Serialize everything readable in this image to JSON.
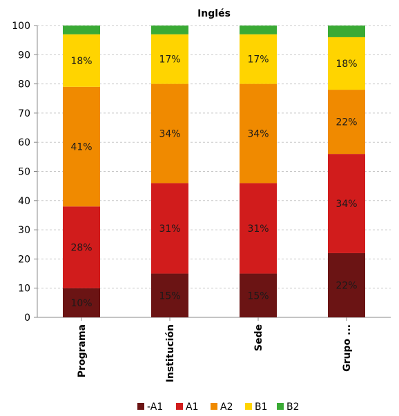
{
  "chart_data": {
    "type": "bar",
    "stacked": true,
    "title": "Inglés",
    "categories": [
      "Programa",
      "Institución",
      "Sede",
      "Grupo ..."
    ],
    "ylim": [
      0,
      100
    ],
    "yticks": [
      0,
      10,
      20,
      30,
      40,
      50,
      60,
      70,
      80,
      90,
      100
    ],
    "grid": true,
    "legend_position": "bottom",
    "series": [
      {
        "name": "-A1",
        "color": "#6b1414",
        "values": [
          10,
          15,
          15,
          22
        ],
        "labels": [
          "10%",
          "15%",
          "15%",
          "22%"
        ]
      },
      {
        "name": "A1",
        "color": "#d11c1c",
        "values": [
          28,
          31,
          31,
          34
        ],
        "labels": [
          "28%",
          "31%",
          "31%",
          "34%"
        ]
      },
      {
        "name": "A2",
        "color": "#f08a00",
        "values": [
          41,
          34,
          34,
          22
        ],
        "labels": [
          "41%",
          "34%",
          "34%",
          "22%"
        ]
      },
      {
        "name": "B1",
        "color": "#ffd400",
        "values": [
          18,
          17,
          17,
          18
        ],
        "labels": [
          "18%",
          "17%",
          "17%",
          "18%"
        ]
      },
      {
        "name": "B2",
        "color": "#3aaa35",
        "values": [
          3,
          3,
          3,
          4
        ],
        "labels": [
          "",
          "",
          "",
          ""
        ]
      }
    ]
  }
}
